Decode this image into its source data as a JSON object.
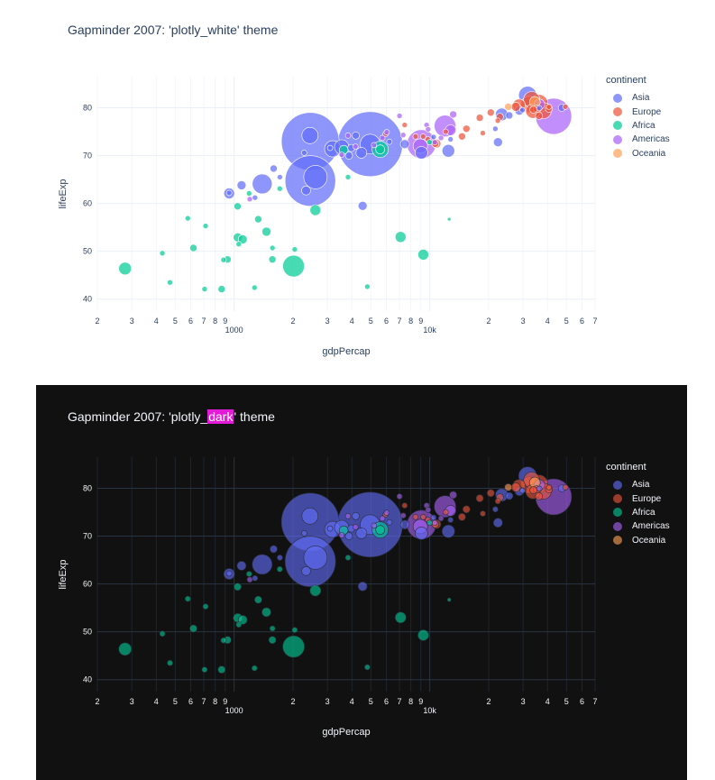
{
  "chart_data": [
    {
      "type": "scatter",
      "theme": "plotly_white",
      "title_prefix": "Gapminder 2007: 'plotly_",
      "title_highlight": "white",
      "title_suffix": "' theme",
      "xlabel": "gdpPercap",
      "ylabel": "lifeExp",
      "x_scale": "log",
      "xlim": [
        200,
        70000
      ],
      "ylim": [
        37.5,
        86.5
      ],
      "yticks": [
        40,
        50,
        60,
        70,
        80
      ],
      "xticks_major": [
        {
          "value": 1000,
          "label": "1000"
        },
        {
          "value": 10000,
          "label": "10k"
        }
      ],
      "xticks_minor": [
        {
          "value": 200,
          "label": "2"
        },
        {
          "value": 300,
          "label": "3"
        },
        {
          "value": 400,
          "label": "4"
        },
        {
          "value": 500,
          "label": "5"
        },
        {
          "value": 600,
          "label": "6"
        },
        {
          "value": 700,
          "label": "7"
        },
        {
          "value": 800,
          "label": "8"
        },
        {
          "value": 900,
          "label": "9"
        },
        {
          "value": 2000,
          "label": "2"
        },
        {
          "value": 3000,
          "label": "3"
        },
        {
          "value": 4000,
          "label": "4"
        },
        {
          "value": 5000,
          "label": "5"
        },
        {
          "value": 6000,
          "label": "6"
        },
        {
          "value": 7000,
          "label": "7"
        },
        {
          "value": 8000,
          "label": "8"
        },
        {
          "value": 9000,
          "label": "9"
        },
        {
          "value": 20000,
          "label": "2"
        },
        {
          "value": 30000,
          "label": "3"
        },
        {
          "value": 40000,
          "label": "4"
        },
        {
          "value": 50000,
          "label": "5"
        },
        {
          "value": 60000,
          "label": "6"
        },
        {
          "value": 70000,
          "label": "7"
        }
      ],
      "grid": true,
      "legend_placement": "right",
      "legend_title": "continent",
      "series": [
        {
          "name": "Asia",
          "color": "#636efa",
          "points": [
            [
              2449,
              72.96,
              32
            ],
            [
              2452,
              64.7,
              28
            ],
            [
              4959,
              72.4,
              11
            ],
            [
              4959,
              72.4,
              36
            ],
            [
              31656,
              82.6,
              10
            ],
            [
              3548,
              71.8,
              8
            ],
            [
              3190,
              71.4,
              9
            ],
            [
              2605,
              65.5,
              13
            ],
            [
              1391,
              64.1,
              11
            ],
            [
              2442,
              74.2,
              9
            ],
            [
              4471,
              70.6,
              6
            ],
            [
              9065,
              70.6,
              7
            ],
            [
              12452,
              71.0,
              7
            ],
            [
              944,
              62.1,
              6
            ],
            [
              1091,
              63.8,
              5
            ],
            [
              1593,
              67.3,
              4
            ],
            [
              2333,
              62.7,
              5
            ],
            [
              4185,
              74.2,
              4
            ],
            [
              7458,
              72.4,
              5
            ],
            [
              3970,
              71.6,
              4
            ],
            [
              3862,
              70.0,
              4
            ],
            [
              2281,
              70.6,
              3
            ],
            [
              1713,
              65.5,
              3
            ],
            [
              4540,
              59.5,
              5
            ],
            [
              22316,
              72.8,
              5
            ],
            [
              23348,
              78.6,
              7
            ],
            [
              28718,
              79.4,
              5
            ],
            [
              25523,
              78.4,
              4
            ],
            [
              47306,
              80.0,
              4
            ],
            [
              36319,
              79.9,
              3
            ],
            [
              29796,
              79.5,
              3
            ],
            [
              21655,
              75.6,
              3
            ],
            [
              12779,
              73.4,
              3
            ],
            [
              10461,
              73.9,
              3
            ],
            [
              3095,
              71.6,
              3
            ],
            [
              6223,
              72.9,
              3
            ],
            [
              1278,
              61.2,
              3
            ],
            [
              944,
              62.2,
              3
            ]
          ]
        },
        {
          "name": "Europe",
          "color": "#ef553b",
          "points": [
            [
              36126,
              80.9,
              10
            ],
            [
              32170,
              80.7,
              9
            ],
            [
              33203,
              81.7,
              9
            ],
            [
              38030,
              79.4,
              9
            ],
            [
              33693,
              79.3,
              8
            ],
            [
              28570,
              80.5,
              7
            ],
            [
              40676,
              79.8,
              4
            ],
            [
              35278,
              79.8,
              4
            ],
            [
              27538,
              80.2,
              5
            ],
            [
              33860,
              79.6,
              4
            ],
            [
              36181,
              78.3,
              4
            ],
            [
              40675,
              80.2,
              3
            ],
            [
              49357,
              80.2,
              3
            ],
            [
              22833,
              78.1,
              4
            ],
            [
              20510,
              79.0,
              4
            ],
            [
              18009,
              77.9,
              4
            ],
            [
              15390,
              75.6,
              4
            ],
            [
              14619,
              74.0,
              4
            ],
            [
              10681,
              72.5,
              4
            ],
            [
              18678,
              74.7,
              3
            ],
            [
              22276,
              77.3,
              3
            ],
            [
              9787,
              73.4,
              3
            ],
            [
              8459,
              74.0,
              3
            ],
            [
              7446,
              76.4,
              3
            ],
            [
              10808,
              72.5,
              5
            ],
            [
              12057,
              75.0,
              3
            ],
            [
              5937,
              74.5,
              3
            ],
            [
              9253,
              74.0,
              3
            ]
          ]
        },
        {
          "name": "Africa",
          "color": "#00cc96",
          "points": [
            [
              2014,
              46.9,
              12
            ],
            [
              277,
              46.4,
              7
            ],
            [
              7092,
              53.0,
              6
            ],
            [
              5581,
              71.3,
              9
            ],
            [
              3632,
              71.2,
              5
            ],
            [
              9270,
              49.3,
              6
            ],
            [
              2602,
              58.6,
              6
            ],
            [
              4797,
              42.6,
              3
            ],
            [
              863,
              42.1,
              4
            ],
            [
              1044,
              52.9,
              5
            ],
            [
              1107,
              52.5,
              5
            ],
            [
              619,
              50.7,
              4
            ],
            [
              1463,
              54.1,
              5
            ],
            [
              926,
              48.3,
              4
            ],
            [
              1328,
              56.7,
              4
            ],
            [
              3820,
              65.5,
              3
            ],
            [
              12570,
              56.7,
              2
            ],
            [
              5581,
              71.3,
              5
            ],
            [
              1042,
              59.4,
              4
            ],
            [
              883,
              48.2,
              3
            ],
            [
              1570,
              50.7,
              3
            ],
            [
              430,
              49.6,
              3
            ],
            [
              470,
              43.5,
              3
            ],
            [
              1056,
              51.5,
              3
            ],
            [
              2042,
              50.4,
              3
            ],
            [
              1569,
              48.3,
              4
            ],
            [
              706,
              42.1,
              3
            ],
            [
              1271,
              42.4,
              3
            ],
            [
              715,
              55.3,
              3
            ],
            [
              1712,
              63.1,
              3
            ],
            [
              580,
              56.9,
              3
            ],
            [
              1193,
              62.1,
              3
            ],
            [
              10000,
              72.8,
              3
            ]
          ]
        },
        {
          "name": "Americas",
          "color": "#ab63fa",
          "points": [
            [
              42952,
              78.2,
              20
            ],
            [
              9066,
              72.4,
              16
            ],
            [
              11978,
              76.2,
              12
            ],
            [
              8948,
              72.0,
              8
            ],
            [
              36319,
              80.7,
              6
            ],
            [
              12779,
              75.3,
              6
            ],
            [
              13172,
              78.6,
              4
            ],
            [
              10611,
              72.8,
              3
            ],
            [
              9645,
              76.4,
              3
            ],
            [
              7321,
              74.3,
              3
            ],
            [
              6025,
              74.9,
              3
            ],
            [
              5728,
              73.7,
              3
            ],
            [
              3822,
              74.2,
              3
            ],
            [
              4173,
              71.9,
              3
            ],
            [
              3548,
              70.2,
              3
            ],
            [
              5186,
              72.2,
              3
            ],
            [
              1202,
              60.9,
              3
            ],
            [
              7008,
              78.3,
              3
            ],
            [
              9809,
              75.5,
              3
            ],
            [
              11415,
              73.7,
              3
            ]
          ]
        },
        {
          "name": "Oceania",
          "color": "#ffa15a",
          "points": [
            [
              34435,
              81.2,
              6
            ],
            [
              25185,
              80.2,
              4
            ]
          ]
        }
      ]
    },
    {
      "type": "scatter",
      "theme": "plotly_dark",
      "title_prefix": "Gapminder 2007: 'plotly_",
      "title_highlight": "dark",
      "title_suffix": "' theme",
      "xlabel": "gdpPercap",
      "ylabel": "lifeExp",
      "x_scale": "log",
      "legend_placement": "right",
      "legend_title": "continent",
      "same_data_as_first": true,
      "series_colors": {
        "Asia": "#636efa",
        "Europe": "#ef553b",
        "Africa": "#00cc96",
        "Americas": "#ab63fa",
        "Oceania": "#ffa15a"
      }
    }
  ]
}
